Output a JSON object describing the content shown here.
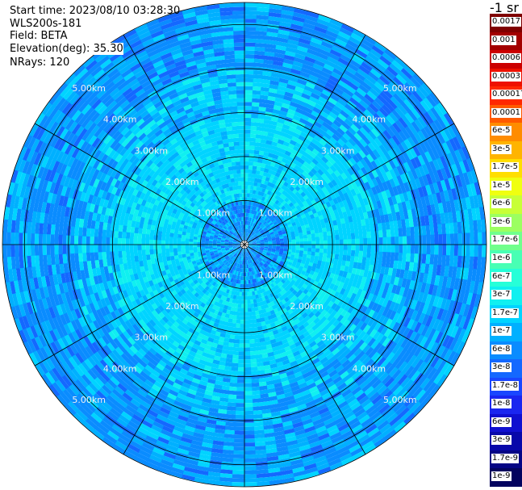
{
  "info": {
    "start_time": "Start time: 2023/08/10 03:28:30",
    "instrument": "WLS200s-181",
    "field": "Field: BETA",
    "elevation_label": "Elevation(deg):",
    "elevation_value": "35.30",
    "nrays": "NRays: 120"
  },
  "colorbar": {
    "unit": "-1 sr",
    "levels": [
      {
        "label": "0.0017",
        "color": "#7f0000"
      },
      {
        "label": "0.001",
        "color": "#a30000"
      },
      {
        "label": "0.0006",
        "color": "#cc0000"
      },
      {
        "label": "0.0003",
        "color": "#ee1100"
      },
      {
        "label": "0.00017",
        "color": "#ff2800"
      },
      {
        "label": "0.0001",
        "color": "#ff5a00"
      },
      {
        "label": "6e-5",
        "color": "#ff8c00"
      },
      {
        "label": "3e-5",
        "color": "#ffb400"
      },
      {
        "label": "1.7e-5",
        "color": "#ffde00"
      },
      {
        "label": "1e-5",
        "color": "#f0ff10"
      },
      {
        "label": "6e-6",
        "color": "#c8ff36"
      },
      {
        "label": "3e-6",
        "color": "#9cff60"
      },
      {
        "label": "1.7e-6",
        "color": "#70ff8c"
      },
      {
        "label": "1e-6",
        "color": "#48ffb4"
      },
      {
        "label": "6e-7",
        "color": "#26ffd8"
      },
      {
        "label": "3e-7",
        "color": "#10f0f0"
      },
      {
        "label": "1.7e-7",
        "color": "#00d4ff"
      },
      {
        "label": "1e-7",
        "color": "#00b0ff"
      },
      {
        "label": "6e-8",
        "color": "#0a8cff"
      },
      {
        "label": "3e-8",
        "color": "#1468ff"
      },
      {
        "label": "1.7e-8",
        "color": "#1a46ff"
      },
      {
        "label": "1e-8",
        "color": "#1a26f0"
      },
      {
        "label": "6e-9",
        "color": "#1010d0"
      },
      {
        "label": "3e-9",
        "color": "#0808aa"
      },
      {
        "label": "1.7e-9",
        "color": "#050585"
      },
      {
        "label": "1e-9",
        "color": "#03035e"
      }
    ]
  },
  "chart_data": {
    "type": "heatmap",
    "projection": "polar (PPI)",
    "title": "",
    "field": "BETA",
    "n_rays": 120,
    "elevation_deg": 35.3,
    "max_range_km": 5.5,
    "range_rings_km": [
      1,
      2,
      3,
      4,
      5
    ],
    "ring_labels": [
      "1.00km",
      "2.00km",
      "3.00km",
      "4.00km",
      "5.00km"
    ],
    "azimuth_spokes_deg": [
      0,
      30,
      60,
      90,
      120,
      150,
      180,
      210,
      240,
      270,
      300,
      330
    ],
    "value_range": [
      1e-09,
      0.0017
    ],
    "dominant_values_by_range": [
      {
        "range_km": [
          0,
          1
        ],
        "value": 6e-08
      },
      {
        "range_km": [
          1,
          3
        ],
        "value": 1.7e-07
      },
      {
        "range_km": [
          3,
          4
        ],
        "value": 1e-07
      },
      {
        "range_km": [
          4,
          5.5
        ],
        "value": 6e-08
      }
    ]
  }
}
